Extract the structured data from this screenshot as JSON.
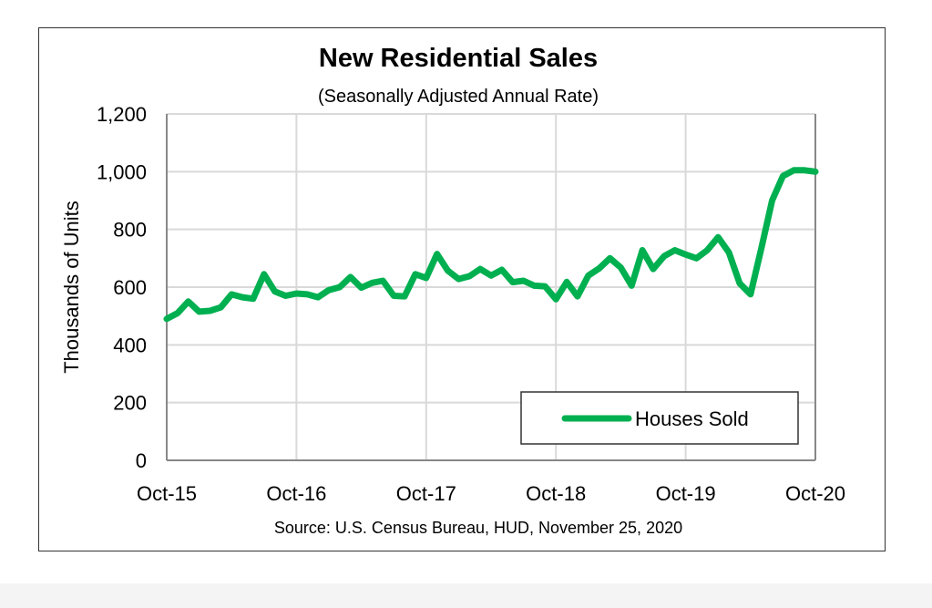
{
  "chart_data": {
    "type": "line",
    "title": "New Residential Sales",
    "subtitle": "(Seasonally Adjusted Annual Rate)",
    "ylabel": "Thousands of Units",
    "xlabel": "",
    "source": "Source:  U.S. Census Bureau, HUD, November 25, 2020",
    "ylim": [
      0,
      1200
    ],
    "yticks": [
      0,
      200,
      400,
      600,
      800,
      1000,
      1200
    ],
    "ytick_labels": [
      "0",
      "200",
      "400",
      "600",
      "800",
      "1,000",
      "1,200"
    ],
    "xtick_labels": [
      "Oct-15",
      "Oct-16",
      "Oct-17",
      "Oct-18",
      "Oct-19",
      "Oct-20"
    ],
    "grid": true,
    "legend_position": "bottom-right",
    "series": [
      {
        "name": "Houses Sold",
        "color": "#00b050",
        "values": [
          490,
          510,
          550,
          515,
          518,
          530,
          575,
          565,
          560,
          645,
          585,
          570,
          578,
          575,
          565,
          590,
          600,
          635,
          598,
          615,
          622,
          570,
          568,
          645,
          632,
          715,
          657,
          628,
          638,
          663,
          640,
          660,
          617,
          622,
          605,
          603,
          558,
          618,
          568,
          640,
          665,
          700,
          668,
          605,
          728,
          663,
          707,
          728,
          713,
          700,
          728,
          773,
          720,
          613,
          575,
          735,
          900,
          985,
          1005,
          1005,
          1000
        ]
      }
    ]
  }
}
